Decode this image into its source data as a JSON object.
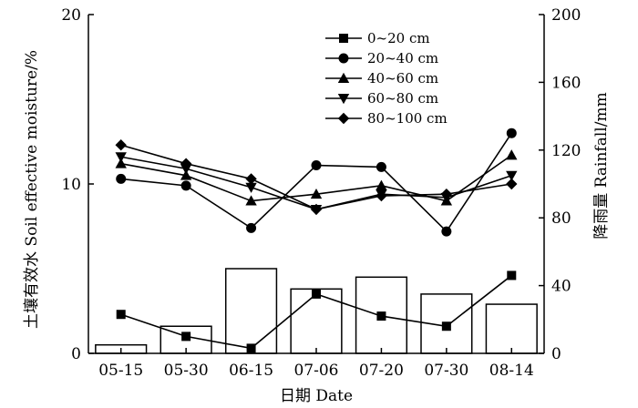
{
  "chart_data": {
    "type": "bar+line",
    "categories": [
      "05-15",
      "05-30",
      "06-15",
      "07-06",
      "07-20",
      "07-30",
      "08-14"
    ],
    "xlabel": "日期 Date",
    "ylabel_left": "土壤有效水 Soil effective moisture/%",
    "ylabel_right": "降雨量 Rainfall/mm",
    "ylim_left": [
      0,
      20
    ],
    "yticks_left": [
      0,
      10,
      20
    ],
    "ylim_right": [
      0,
      200
    ],
    "yticks_right": [
      0,
      40,
      80,
      120,
      160,
      200
    ],
    "rainfall": {
      "axis": "right",
      "values": [
        5,
        16,
        50,
        38,
        45,
        35,
        29
      ]
    },
    "series": [
      {
        "name": "0~20 cm",
        "marker": "square",
        "axis": "left",
        "values": [
          2.3,
          1.0,
          0.3,
          3.5,
          2.2,
          1.6,
          4.6
        ]
      },
      {
        "name": "20~40 cm",
        "marker": "circle",
        "axis": "left",
        "values": [
          10.3,
          9.9,
          7.4,
          11.1,
          11.0,
          7.2,
          13.0
        ]
      },
      {
        "name": "40~60 cm",
        "marker": "triangle-up",
        "axis": "left",
        "values": [
          11.2,
          10.5,
          9.0,
          9.4,
          9.9,
          9.0,
          11.7
        ]
      },
      {
        "name": "60~80 cm",
        "marker": "triangle-down",
        "axis": "left",
        "values": [
          11.6,
          10.9,
          9.8,
          8.5,
          9.4,
          9.2,
          10.5
        ]
      },
      {
        "name": "80~100 cm",
        "marker": "diamond",
        "axis": "left",
        "values": [
          12.3,
          11.2,
          10.3,
          8.5,
          9.3,
          9.4,
          10.0
        ]
      }
    ],
    "legend_position": "top-right",
    "grid": false
  }
}
